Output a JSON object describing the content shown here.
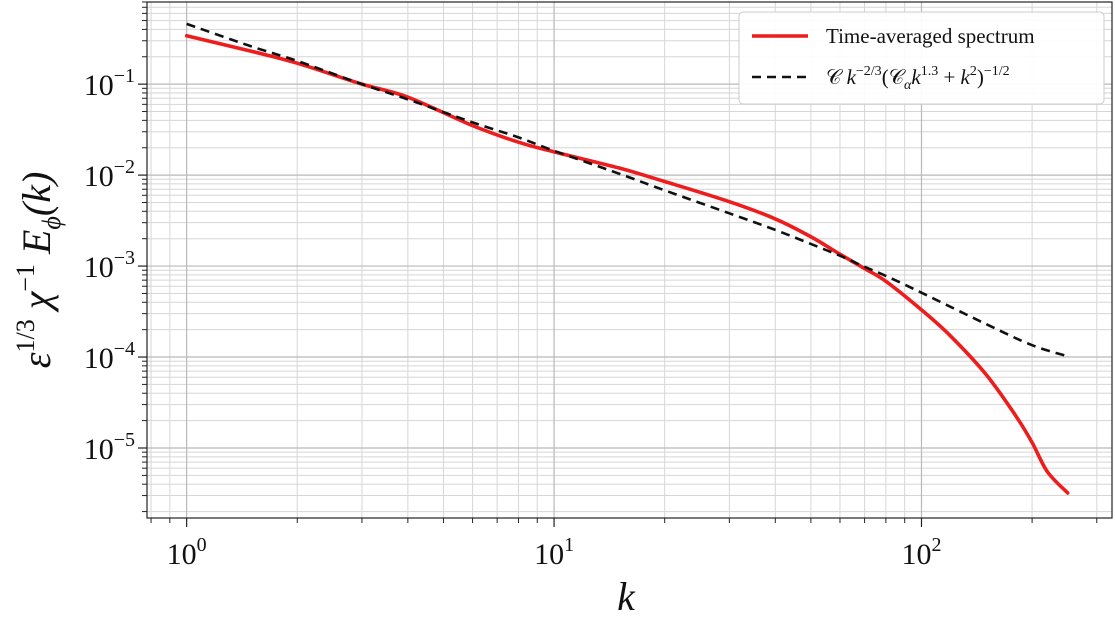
{
  "chart_data": {
    "type": "line",
    "xscale": "log",
    "yscale": "log",
    "xlim": [
      0.78,
      330
    ],
    "ylim": [
      1.7e-06,
      0.8
    ],
    "grid": true,
    "legend_position": "top-right",
    "xlabel": {
      "base": "k"
    },
    "ylabel": {
      "eps": "ε",
      "eps_exp": "1/3",
      "chi": "χ",
      "chi_exp": "−1",
      "E": "E",
      "E_sub": "ϕ",
      "arg": "(k)"
    },
    "x_ticks": [
      {
        "value": 1,
        "base": "10",
        "exp": "0"
      },
      {
        "value": 10,
        "base": "10",
        "exp": "1"
      },
      {
        "value": 100,
        "base": "10",
        "exp": "2"
      }
    ],
    "y_ticks": [
      {
        "value": 0.1,
        "base": "10",
        "exp": "−1"
      },
      {
        "value": 0.01,
        "base": "10",
        "exp": "−2"
      },
      {
        "value": 0.001,
        "base": "10",
        "exp": "−3"
      },
      {
        "value": 0.0001,
        "base": "10",
        "exp": "−4"
      },
      {
        "value": 1e-05,
        "base": "10",
        "exp": "−5"
      }
    ],
    "series": [
      {
        "name": "Time-averaged spectrum",
        "color": "#ee1c1c",
        "dash": "solid",
        "x": [
          1,
          1.5,
          2,
          3,
          4,
          6,
          8,
          10,
          15,
          20,
          30,
          40,
          50,
          60,
          70,
          80,
          100,
          120,
          150,
          180,
          200,
          220,
          250
        ],
        "y": [
          0.34,
          0.23,
          0.17,
          0.1,
          0.072,
          0.035,
          0.023,
          0.018,
          0.012,
          0.0085,
          0.0051,
          0.0033,
          0.0021,
          0.00135,
          0.00094,
          0.00068,
          0.00033,
          0.00017,
          6.4e-05,
          2.3e-05,
          1.15e-05,
          5.5e-06,
          3.2e-06
        ]
      },
      {
        "name": "𝒞 k^{−2/3}(𝒞_α k^{1.3} + k^2)^{−1/2}",
        "color": "#111111",
        "dash": "dashed",
        "x": [
          1,
          1.5,
          2,
          3,
          4,
          6,
          8,
          10,
          15,
          20,
          30,
          40,
          50,
          60,
          70,
          80,
          100,
          150,
          200,
          250
        ],
        "y": [
          0.46,
          0.26,
          0.18,
          0.1,
          0.068,
          0.038,
          0.026,
          0.0185,
          0.0104,
          0.0068,
          0.0038,
          0.0025,
          0.00175,
          0.0013,
          0.00098,
          0.00078,
          0.00051,
          0.00023,
          0.000135,
          0.000102
        ]
      }
    ],
    "legend": {
      "entries": [
        {
          "text": "Time-averaged spectrum"
        },
        {
          "c": "𝒞",
          "k1": "k",
          "e1": "−2/3",
          "p1": "(",
          "c2": "𝒞",
          "s2": "α",
          "k2": "k",
          "e2": "1.3",
          "mid": " + ",
          "k3": "k",
          "e3": "2",
          "p2": ")",
          "e4": "−1/2"
        }
      ]
    }
  }
}
